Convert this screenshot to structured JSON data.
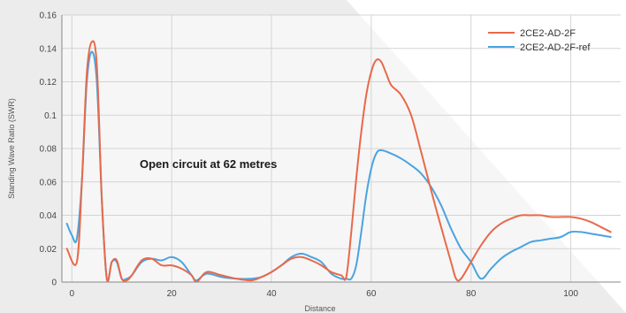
{
  "chart_data": {
    "type": "line",
    "title": "",
    "xlabel": "Distance",
    "ylabel": "Standing Wave Ratio (SWR)",
    "xlim": [
      -2,
      110
    ],
    "ylim": [
      0,
      0.16
    ],
    "x_ticks": [
      0,
      20,
      40,
      60,
      80,
      100
    ],
    "y_ticks": [
      0,
      0.02,
      0.04,
      0.06,
      0.08,
      0.1,
      0.12,
      0.14,
      0.16
    ],
    "x_tick_labels": [
      "0",
      "20",
      "40",
      "60",
      "80",
      "100"
    ],
    "y_tick_labels": [
      "0",
      "0.02",
      "0.04",
      "0.06",
      "0.08",
      "0.1",
      "0.12",
      "0.14",
      "0.16"
    ],
    "grid": true,
    "legend_position": "top-right",
    "annotation": "Open circuit at 62 metres",
    "series": [
      {
        "name": "2CE2-AD-2F",
        "color": "#e8694a",
        "x": [
          -1,
          1,
          2,
          3,
          4,
          5,
          6,
          7,
          8,
          9,
          10,
          11,
          12,
          14,
          16,
          18,
          20,
          22,
          24,
          25,
          27,
          30,
          33,
          36,
          38,
          40,
          42,
          44,
          46,
          48,
          50,
          52,
          54,
          55,
          56,
          57,
          58,
          59,
          60,
          61,
          62,
          63,
          64,
          66,
          68,
          70,
          72,
          74,
          76,
          77,
          78,
          80,
          82,
          84,
          86,
          88,
          90,
          92,
          94,
          96,
          98,
          100,
          102,
          104,
          106,
          108
        ],
        "values": [
          0.02,
          0.012,
          0.06,
          0.125,
          0.144,
          0.13,
          0.05,
          0.002,
          0.012,
          0.013,
          0.002,
          0.001,
          0.004,
          0.013,
          0.014,
          0.01,
          0.01,
          0.008,
          0.004,
          0.0,
          0.006,
          0.004,
          0.002,
          0.001,
          0.003,
          0.006,
          0.01,
          0.014,
          0.015,
          0.013,
          0.01,
          0.006,
          0.004,
          0.003,
          0.03,
          0.062,
          0.09,
          0.112,
          0.126,
          0.133,
          0.132,
          0.125,
          0.118,
          0.112,
          0.1,
          0.078,
          0.055,
          0.033,
          0.012,
          0.002,
          0.002,
          0.012,
          0.022,
          0.03,
          0.035,
          0.038,
          0.04,
          0.04,
          0.04,
          0.039,
          0.039,
          0.039,
          0.038,
          0.036,
          0.033,
          0.03
        ]
      },
      {
        "name": "2CE2-AD-2F-ref",
        "color": "#4aa3e0",
        "x": [
          -1,
          0,
          1,
          2,
          3,
          4,
          5,
          6,
          7,
          8,
          9,
          10,
          11,
          12,
          14,
          16,
          18,
          20,
          22,
          24,
          25,
          27,
          30,
          33,
          36,
          38,
          40,
          42,
          44,
          46,
          48,
          50,
          52,
          54,
          55,
          56,
          57,
          58,
          59,
          60,
          61,
          62,
          64,
          66,
          68,
          70,
          72,
          74,
          76,
          78,
          80,
          82,
          84,
          86,
          88,
          90,
          92,
          94,
          96,
          98,
          100,
          102,
          104,
          106,
          108
        ],
        "values": [
          0.035,
          0.028,
          0.026,
          0.06,
          0.12,
          0.138,
          0.12,
          0.05,
          0.002,
          0.012,
          0.012,
          0.002,
          0.002,
          0.004,
          0.012,
          0.014,
          0.013,
          0.015,
          0.012,
          0.004,
          0.001,
          0.005,
          0.003,
          0.002,
          0.002,
          0.003,
          0.006,
          0.01,
          0.015,
          0.017,
          0.015,
          0.012,
          0.005,
          0.002,
          0.002,
          0.002,
          0.01,
          0.03,
          0.052,
          0.068,
          0.077,
          0.079,
          0.077,
          0.074,
          0.07,
          0.065,
          0.057,
          0.046,
          0.032,
          0.02,
          0.012,
          0.002,
          0.008,
          0.014,
          0.018,
          0.021,
          0.024,
          0.025,
          0.026,
          0.027,
          0.03,
          0.03,
          0.029,
          0.028,
          0.027
        ]
      }
    ]
  }
}
